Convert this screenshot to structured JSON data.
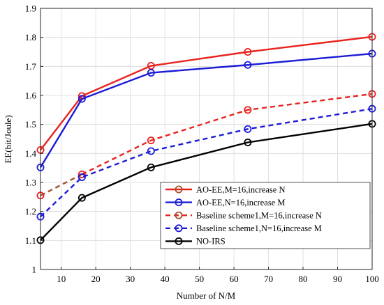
{
  "chart_data": {
    "type": "line",
    "title": "",
    "xlabel": "Number of  N/M",
    "ylabel": "EE(bit/Joule)",
    "xlim": [
      4,
      100
    ],
    "ylim": [
      1,
      1.9
    ],
    "x_ticks": [
      10,
      20,
      30,
      40,
      50,
      60,
      70,
      80,
      90,
      100
    ],
    "y_ticks": [
      1,
      1.1,
      1.2,
      1.3,
      1.4,
      1.5,
      1.6,
      1.7,
      1.8,
      1.9
    ],
    "x_tick_labels": [
      "10",
      "20",
      "30",
      "40",
      "50",
      "60",
      "70",
      "80",
      "90",
      "100"
    ],
    "y_tick_labels": [
      "1",
      "1.1",
      "1.2",
      "1.3",
      "1.4",
      "1.5",
      "1.6",
      "1.7",
      "1.8",
      "1.9"
    ],
    "grid": true,
    "legend_position": "bottom-right",
    "x": [
      4,
      16,
      36,
      64,
      100
    ],
    "series": [
      {
        "name": "AO-EE,M=16,increase N",
        "values": [
          1.412,
          1.598,
          1.702,
          1.75,
          1.802
        ],
        "color": "#e8231e",
        "dash": false,
        "marker_color": "#e8231e",
        "legend_marker_color": "#a0522d"
      },
      {
        "name": "AO-EE,N=16,increase M",
        "values": [
          1.352,
          1.588,
          1.678,
          1.705,
          1.744
        ],
        "color": "#1c1cd6",
        "dash": false,
        "marker_color": "#1c1cd6",
        "legend_marker_color": "#1c1cd6"
      },
      {
        "name": "Baseline scheme1,M=16,increase N",
        "values": [
          1.255,
          1.328,
          1.445,
          1.55,
          1.605
        ],
        "color": "#e8231e",
        "dash": true,
        "marker_color": "#e8231e",
        "legend_marker_color": "#a0522d",
        "first_segment_color": "#a0522d"
      },
      {
        "name": "Baseline scheme1,N=16,increase M",
        "values": [
          1.182,
          1.318,
          1.408,
          1.484,
          1.554
        ],
        "color": "#1c1cd6",
        "dash": true,
        "marker_color": "#1c1cd6",
        "legend_marker_color": "#1c1cd6"
      },
      {
        "name": "NO-IRS",
        "values": [
          1.101,
          1.247,
          1.352,
          1.438,
          1.502
        ],
        "color": "#000000",
        "dash": false,
        "marker_color": "#000000",
        "legend_marker_color": "#000000"
      }
    ]
  }
}
